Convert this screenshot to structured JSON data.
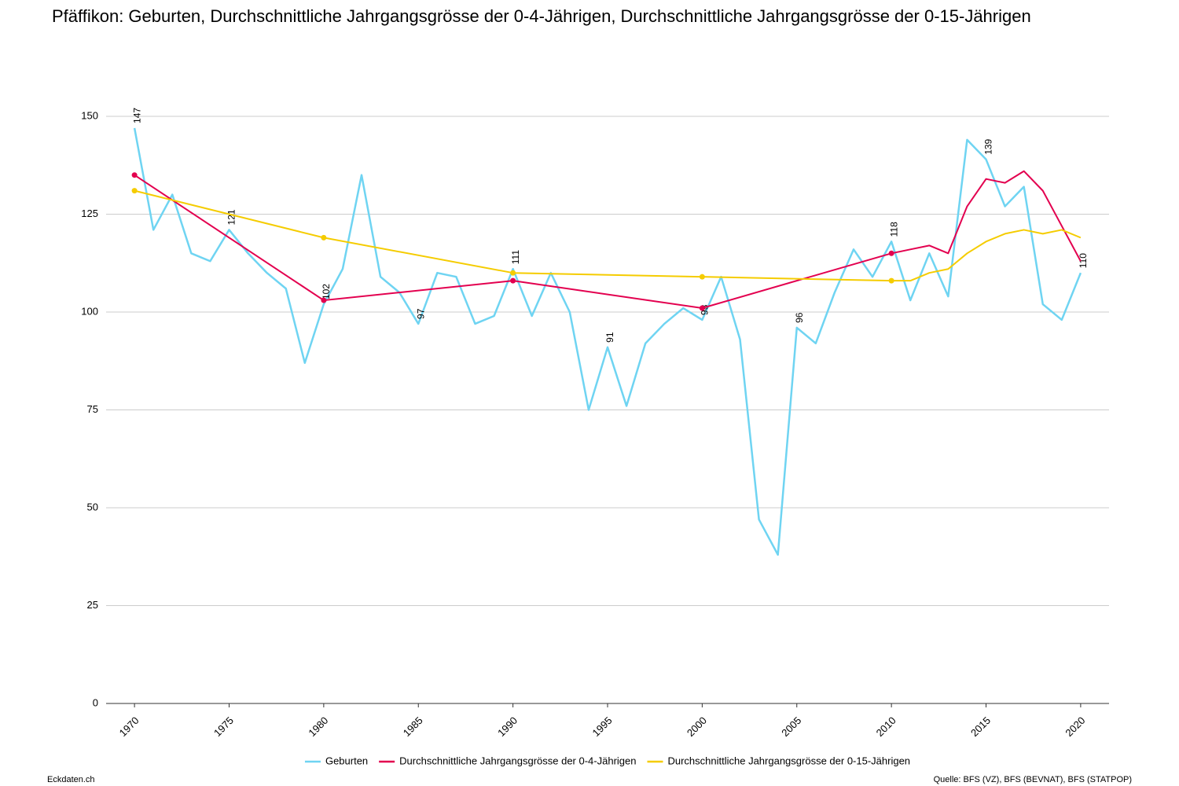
{
  "chart_data": {
    "type": "line",
    "title": "Pfäffikon: Geburten, Durchschnittliche Jahrgangsgrösse der 0-4-Jährigen, Durchschnittliche Jahrgangsgrösse der 0-15-Jährigen",
    "brand": "Eckdaten.ch",
    "source": "Quelle: BFS (VZ), BFS (BEVNAT), BFS (STATPOP)",
    "xlim": [
      1968.5,
      2021.5
    ],
    "xticks": [
      1970,
      1975,
      1980,
      1985,
      1990,
      1995,
      2000,
      2005,
      2010,
      2015,
      2020
    ],
    "ylim": [
      0,
      150
    ],
    "yticks": [
      0,
      25,
      50,
      75,
      100,
      125,
      150
    ],
    "grid": true,
    "legend": "bottom",
    "series": [
      {
        "name": "Geburten",
        "color": "#6fd4f2",
        "label_every": 5,
        "x": [
          1970,
          1971,
          1972,
          1973,
          1974,
          1975,
          1976,
          1977,
          1978,
          1979,
          1980,
          1981,
          1982,
          1983,
          1984,
          1985,
          1986,
          1987,
          1988,
          1989,
          1990,
          1991,
          1992,
          1993,
          1994,
          1995,
          1996,
          1997,
          1998,
          1999,
          2000,
          2001,
          2002,
          2003,
          2004,
          2005,
          2006,
          2007,
          2008,
          2009,
          2010,
          2011,
          2012,
          2013,
          2014,
          2015,
          2016,
          2017,
          2018,
          2019,
          2020
        ],
        "values": [
          147,
          121,
          130,
          115,
          113,
          121,
          115,
          110,
          106,
          87,
          102,
          111,
          135,
          109,
          105,
          97,
          110,
          109,
          97,
          99,
          111,
          99,
          110,
          100,
          75,
          91,
          76,
          92,
          97,
          101,
          98,
          109,
          93,
          47,
          38,
          96,
          92,
          105,
          116,
          109,
          118,
          103,
          115,
          104,
          144,
          139,
          127,
          132,
          102,
          98,
          110
        ]
      },
      {
        "name": "Durchschnittliche Jahrgangsgrösse der 0-4-Jährigen",
        "color": "#e3004f",
        "x": [
          1970,
          1980,
          1990,
          2000,
          2010,
          2011,
          2012,
          2013,
          2014,
          2015,
          2016,
          2017,
          2018,
          2019,
          2020
        ],
        "values": [
          135,
          103,
          108,
          101,
          115,
          116,
          117,
          115,
          127,
          134,
          133,
          136,
          131,
          122,
          113
        ]
      },
      {
        "name": "Durchschnittliche Jahrgangsgrösse der 0-15-Jährigen",
        "color": "#f5cc00",
        "x": [
          1970,
          1980,
          1990,
          2000,
          2010,
          2011,
          2012,
          2013,
          2014,
          2015,
          2016,
          2017,
          2018,
          2019,
          2020
        ],
        "values": [
          131,
          119,
          110,
          109,
          108,
          108,
          110,
          111,
          115,
          118,
          120,
          121,
          120,
          121,
          119
        ]
      }
    ]
  }
}
